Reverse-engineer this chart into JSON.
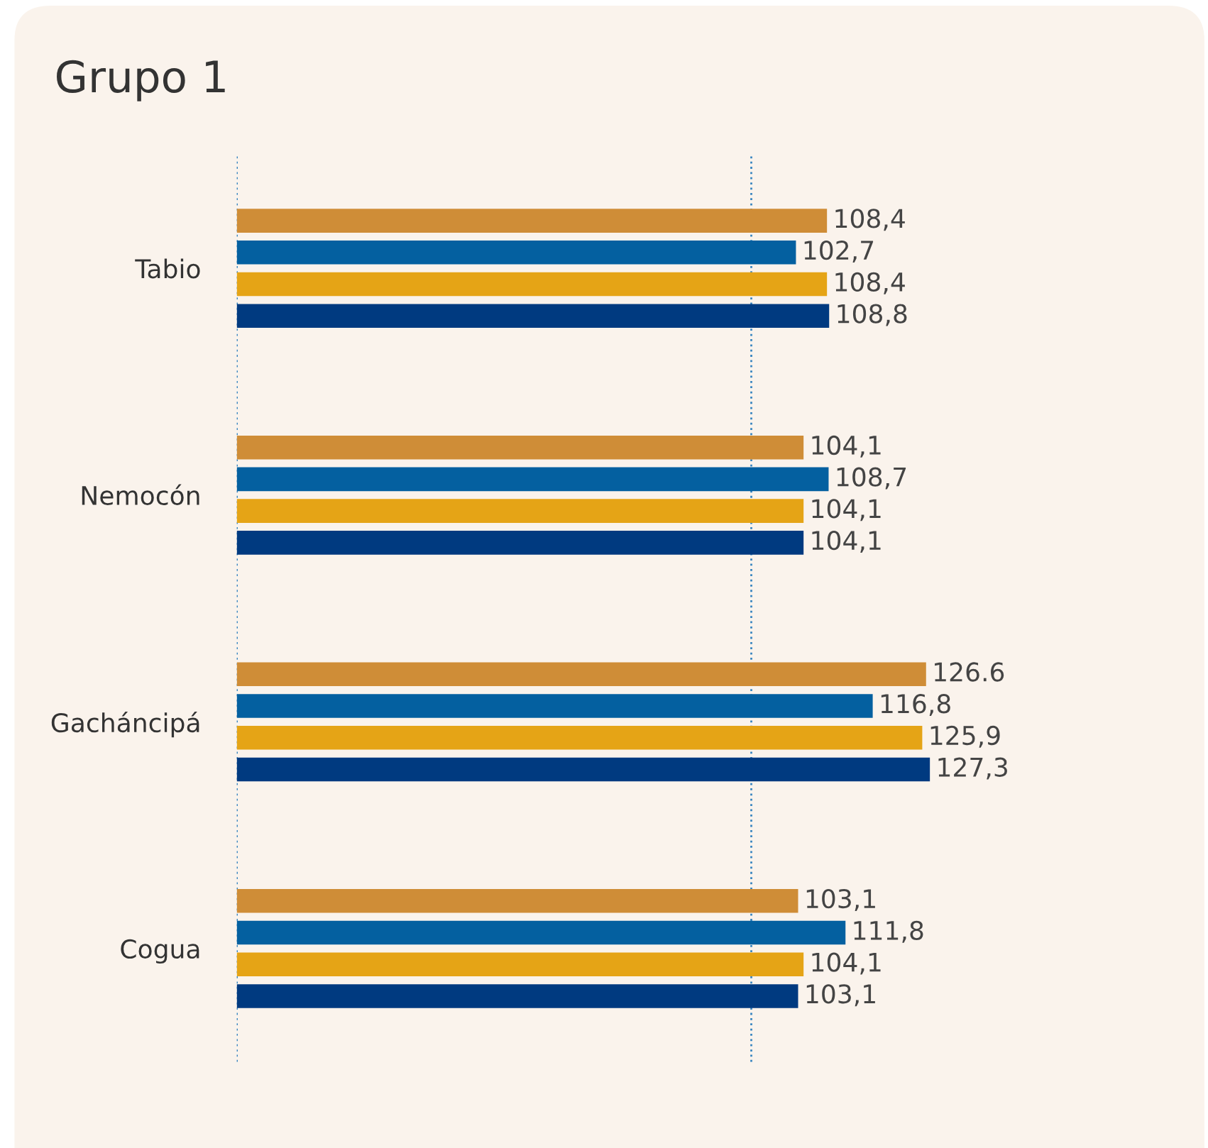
{
  "chart_data": {
    "type": "bar",
    "orientation": "horizontal",
    "title": "Grupo 1",
    "categories": [
      "Tabio",
      "Nemocón",
      "Gacháncipá",
      "Cogua"
    ],
    "series": [
      {
        "color": "#cf8d37",
        "values": [
          108.4,
          104.1,
          126.6,
          103.1
        ],
        "value_labels": [
          "108,4",
          "104,1",
          "126.6",
          "103,1"
        ]
      },
      {
        "color": "#0460a0",
        "values": [
          102.7,
          108.7,
          116.8,
          111.8
        ],
        "value_labels": [
          "102,7",
          "108,7",
          "116,8",
          "111,8"
        ]
      },
      {
        "color": "#e5a416",
        "values": [
          108.4,
          104.1,
          125.9,
          104.1
        ],
        "value_labels": [
          "108,4",
          "104,1",
          "125,9",
          "104,1"
        ]
      },
      {
        "color": "#003a80",
        "values": [
          108.8,
          104.1,
          127.3,
          103.1
        ],
        "value_labels": [
          "108,8",
          "104,1",
          "127,3",
          "103,1"
        ]
      }
    ],
    "ref_lines": [
      {
        "axis": "x",
        "value": 94.5,
        "color": "#3a86c0",
        "line_style": "dotted"
      }
    ],
    "grid": false,
    "legend": false
  }
}
